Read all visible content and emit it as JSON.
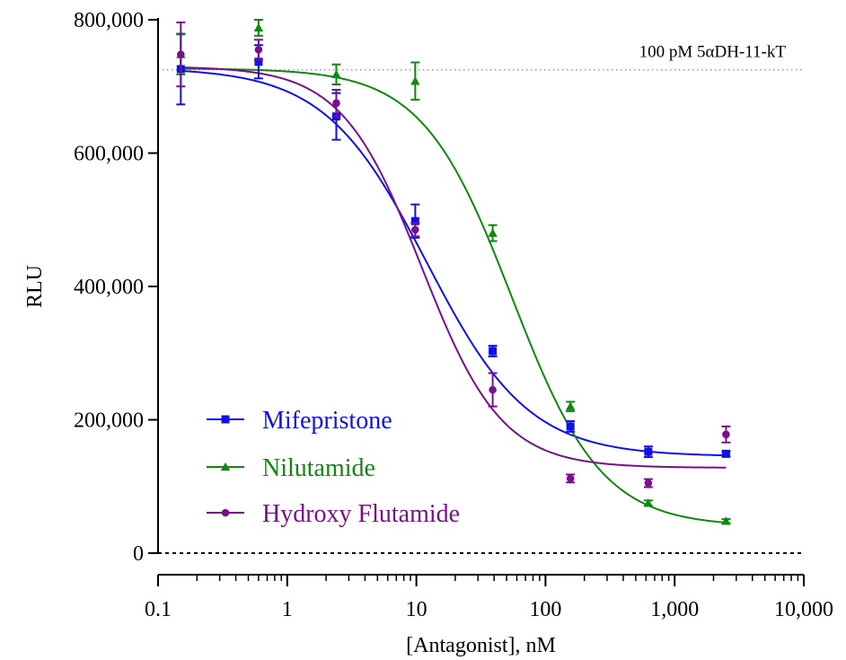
{
  "chart_data": {
    "type": "scatter",
    "title": "",
    "xlabel": "[Antagonist], nM",
    "ylabel": "RLU",
    "x_scale": "log",
    "xlim": [
      0.1,
      10000
    ],
    "ylim": [
      0,
      800000
    ],
    "x_ticks": [
      {
        "value": 0.1,
        "label": "0.1"
      },
      {
        "value": 1,
        "label": "1"
      },
      {
        "value": 10,
        "label": "10"
      },
      {
        "value": 100,
        "label": "100"
      },
      {
        "value": 1000,
        "label": "1,000"
      },
      {
        "value": 10000,
        "label": "10,000"
      }
    ],
    "y_ticks": [
      {
        "value": 0,
        "label": "0"
      },
      {
        "value": 200000,
        "label": "200,000"
      },
      {
        "value": 400000,
        "label": "400,000"
      },
      {
        "value": 600000,
        "label": "600,000"
      },
      {
        "value": 800000,
        "label": "800,000"
      }
    ],
    "grid": false,
    "legend_position": "bottom-left",
    "reference_lines": [
      {
        "y": 725000,
        "label": "100 pM 5αDH-11-kT",
        "style": "dotted"
      },
      {
        "y": 0,
        "label": "",
        "style": "dashed"
      }
    ],
    "x": [
      0.15,
      0.6,
      2.4,
      9.8,
      39,
      156,
      625,
      2500
    ],
    "series": [
      {
        "name": "Mifepristone",
        "color": "#1010ee",
        "marker": "square",
        "values": [
          726000,
          737000,
          655000,
          498000,
          303000,
          190000,
          152000,
          149000
        ],
        "errors": [
          53000,
          25000,
          35000,
          25000,
          8000,
          8000,
          8000,
          4000
        ],
        "fit": {
          "top": 728000,
          "bottom": 145000,
          "ic50": 12,
          "hill": 1.1
        }
      },
      {
        "name": "Nilutamide",
        "color": "#0e880e",
        "marker": "triangle",
        "values": [
          748000,
          788000,
          718000,
          708000,
          480000,
          220000,
          75000,
          48000
        ],
        "errors": [
          30000,
          12000,
          15000,
          28000,
          12000,
          7000,
          4000,
          3000
        ],
        "fit": {
          "top": 727000,
          "bottom": 40000,
          "ic50": 55,
          "hill": 1.25
        }
      },
      {
        "name": "Hydroxy Flutamide",
        "color": "#7a0f8e",
        "marker": "circle",
        "values": [
          748000,
          755000,
          675000,
          485000,
          245000,
          112000,
          105000,
          178000
        ],
        "errors": [
          48000,
          15000,
          20000,
          10000,
          25000,
          6000,
          6000,
          12000
        ],
        "fit": {
          "top": 730000,
          "bottom": 128000,
          "ic50": 11,
          "hill": 1.4
        }
      }
    ]
  }
}
